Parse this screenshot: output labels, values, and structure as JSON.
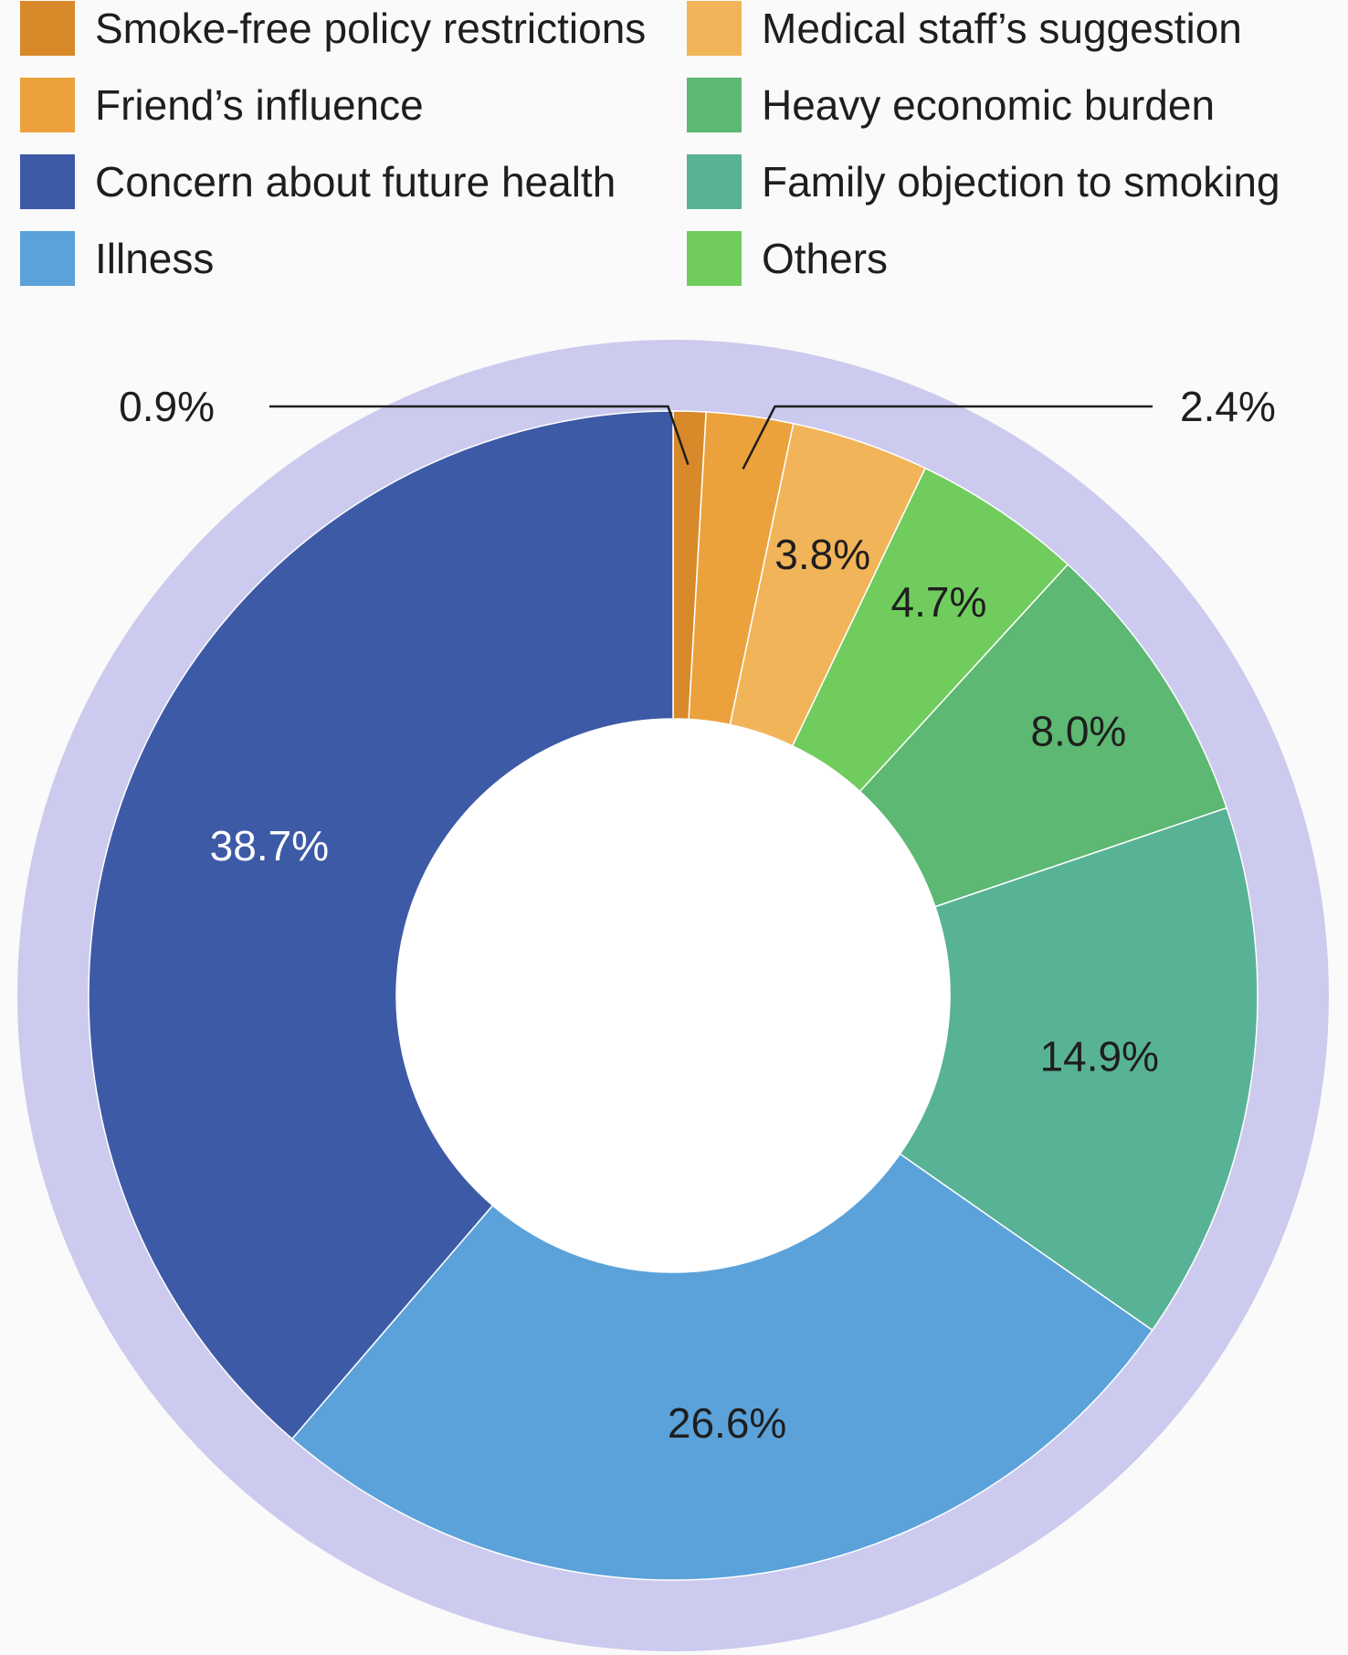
{
  "chart_data": {
    "type": "pie",
    "style": "donut",
    "title": "",
    "ring_color": "#cccaee",
    "categories": [
      "Smoke-free policy restrictions",
      "Friend’s influence",
      "Medical staff’s suggestion",
      "Others",
      "Heavy economic burden",
      "Family objection to smoking",
      "Illness",
      "Concern about future health"
    ],
    "values": [
      0.9,
      2.4,
      3.8,
      4.7,
      8.0,
      14.9,
      26.6,
      38.7
    ],
    "labels": [
      "0.9%",
      "2.4%",
      "3.8%",
      "4.7%",
      "8.0%",
      "14.9%",
      "26.6%",
      "38.7%"
    ],
    "colors": [
      "#d8892a",
      "#eba23d",
      "#f2b458",
      "#71cc5e",
      "#5cb872",
      "#58b296",
      "#5ba2da",
      "#3d5aa6"
    ],
    "label_colors": [
      "#1e1e1e",
      "#1e1e1e",
      "#1e1e1e",
      "#1e1e1e",
      "#1e1e1e",
      "#1e1e1e",
      "#1e1e1e",
      "#ffffff"
    ],
    "legend": [
      {
        "name": "Smoke-free policy restrictions",
        "color": "#d8892a"
      },
      {
        "name": "Medical staff’s suggestion",
        "color": "#f2b458"
      },
      {
        "name": "Friend’s influence",
        "color": "#eba23d"
      },
      {
        "name": "Heavy economic burden",
        "color": "#5cb872"
      },
      {
        "name": "Concern about future health",
        "color": "#3d5aa6"
      },
      {
        "name": "Family objection to smoking",
        "color": "#58b296"
      },
      {
        "name": "Illness",
        "color": "#5ba2da"
      },
      {
        "name": "Others",
        "color": "#71cc5e"
      }
    ],
    "legend_placement": "top",
    "callout_labels": [
      "0.9%",
      "2.4%"
    ]
  }
}
